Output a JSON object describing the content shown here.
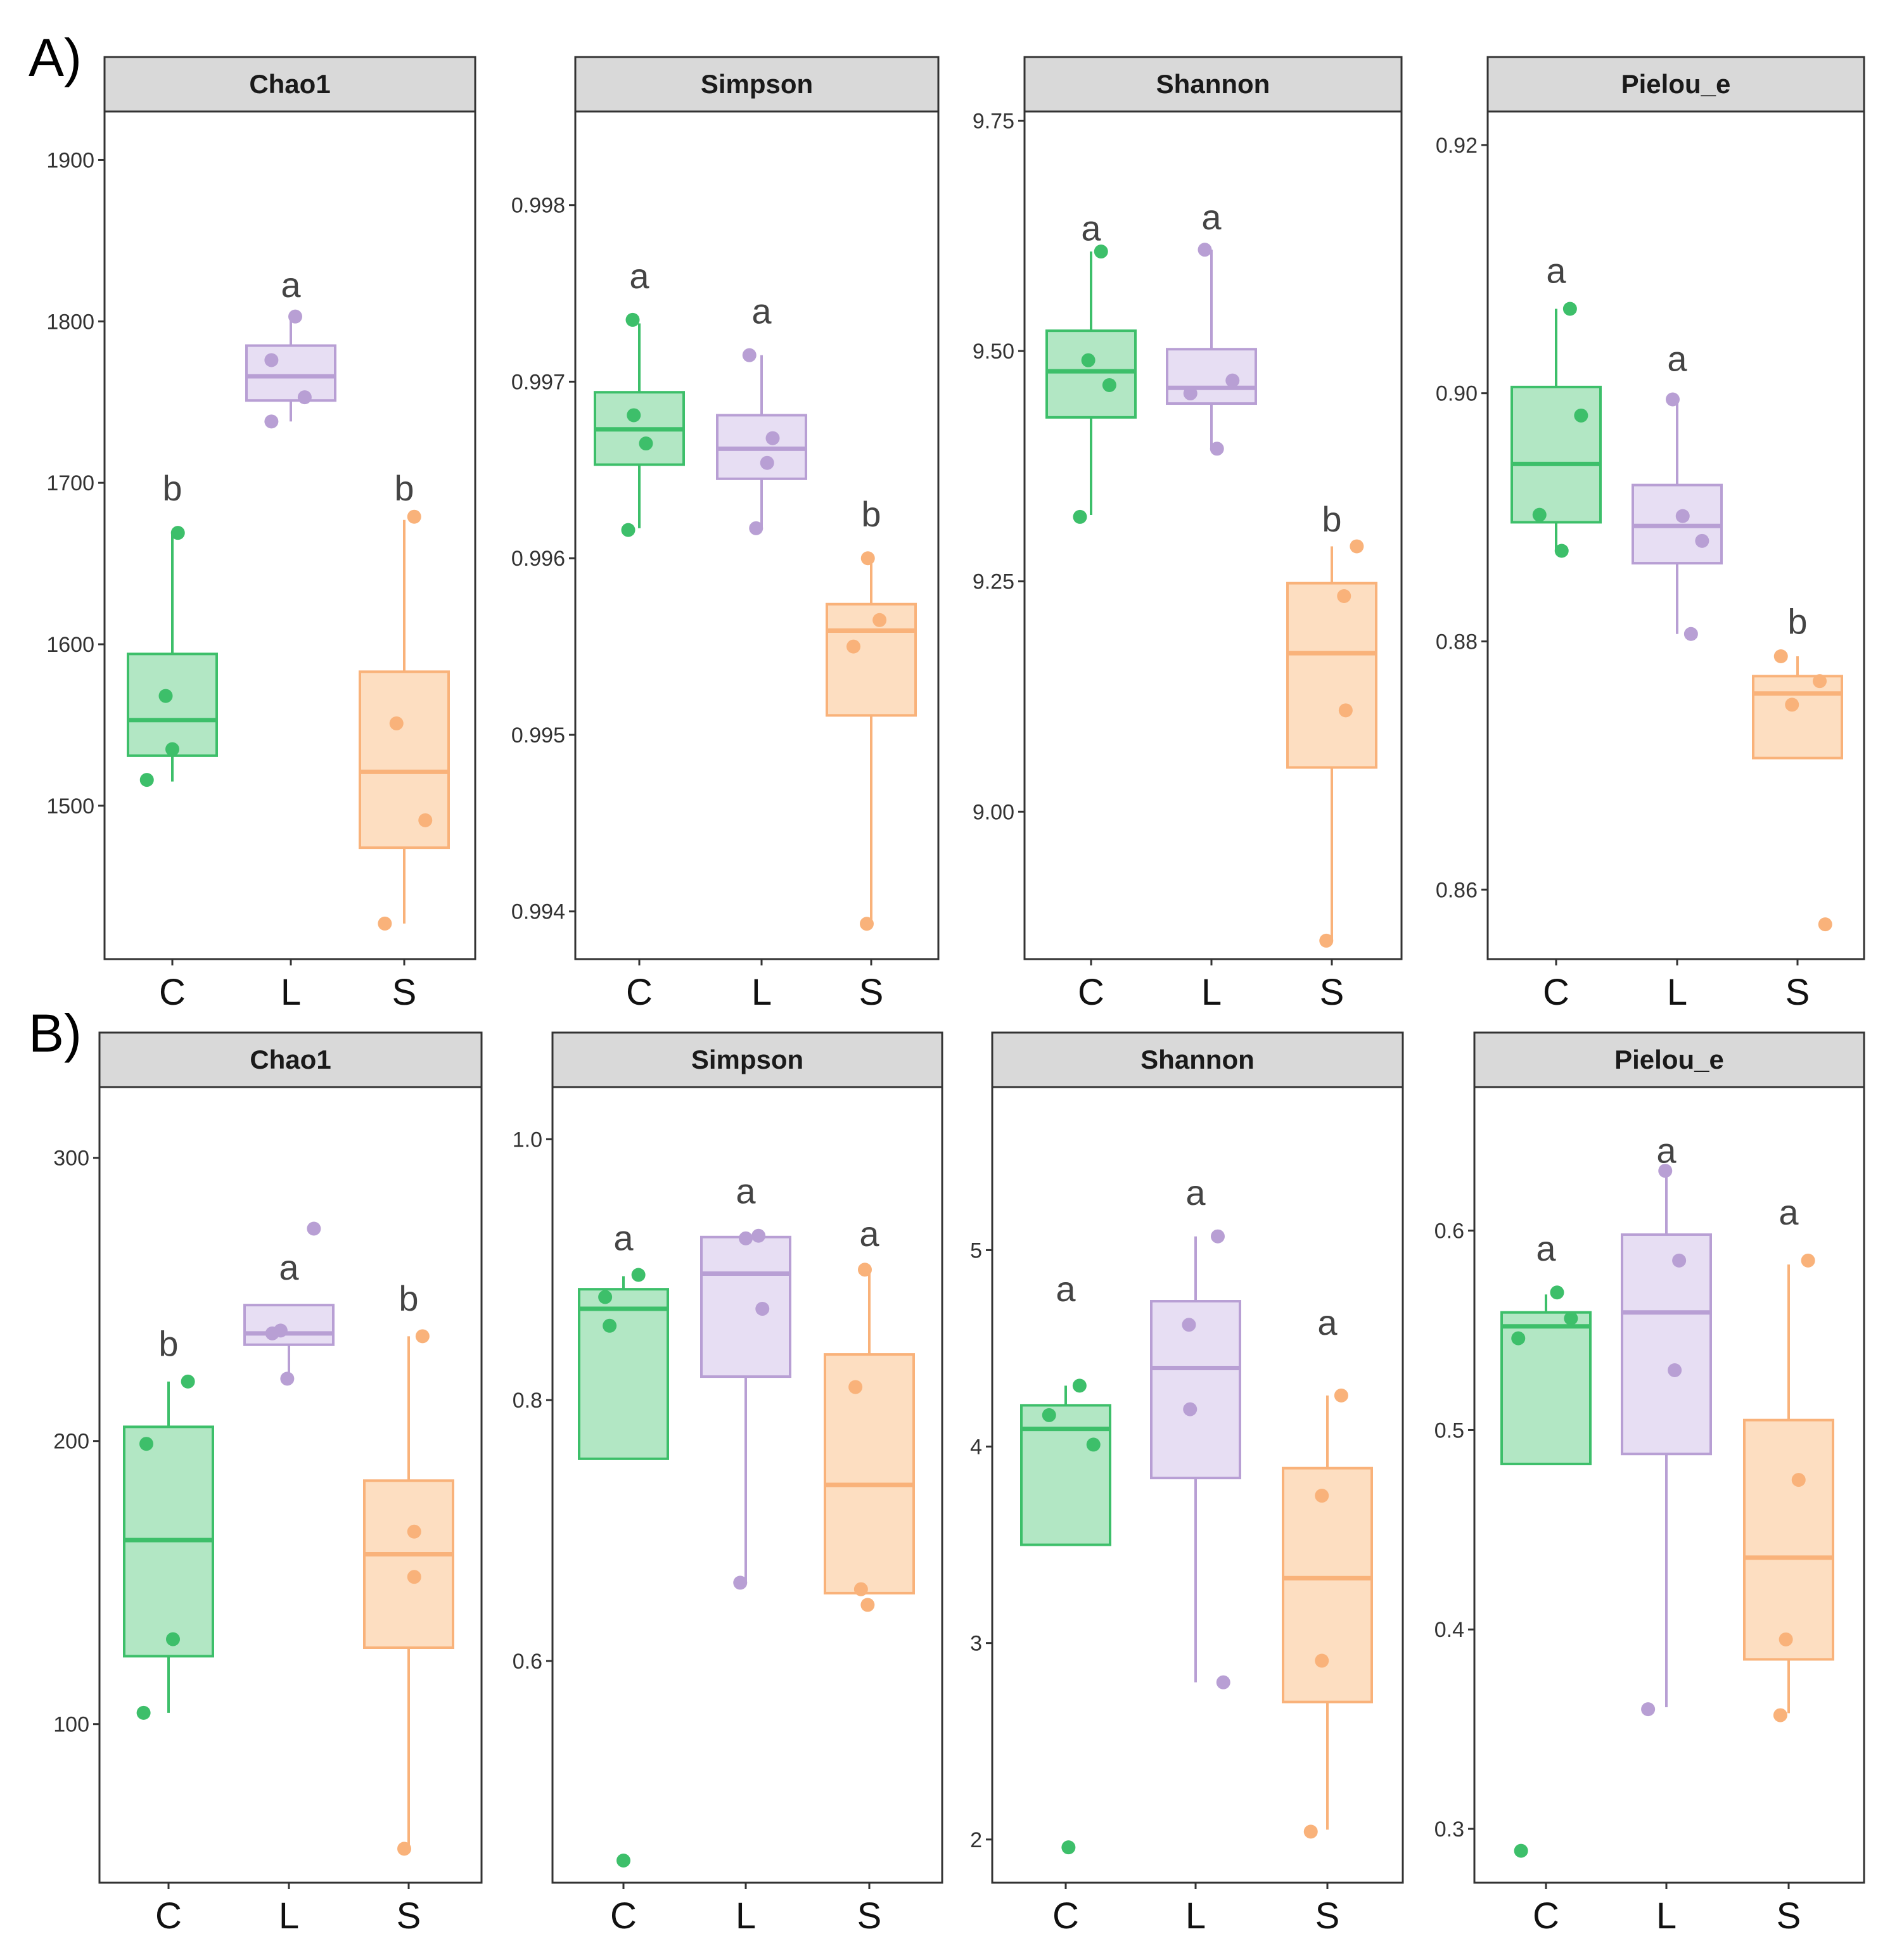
{
  "row_labels": [
    "A)",
    "B)"
  ],
  "colors": {
    "C": "#3dbf6a",
    "L": "#b89fd4",
    "S": "#f9b27a"
  },
  "fills": {
    "C": "#aee6c1",
    "L": "#e6dcf2",
    "S": "#fddcbe"
  },
  "chart_data": [
    {
      "type": "box",
      "row": "A)",
      "title": "Chao1",
      "categories": [
        "C",
        "L",
        "S"
      ],
      "ylim": [
        1405,
        1930
      ],
      "yticks": [
        1500,
        1600,
        1700,
        1800,
        1900
      ],
      "boxes": [
        {
          "cat": "C",
          "q1": 1531,
          "median": 1553,
          "q3": 1594,
          "wlo": 1515,
          "whi": 1669
        },
        {
          "cat": "L",
          "q1": 1751,
          "median": 1766,
          "q3": 1785,
          "wlo": 1738,
          "whi": 1803
        },
        {
          "cat": "S",
          "q1": 1474,
          "median": 1521,
          "q3": 1583,
          "wlo": 1427,
          "whi": 1677
        }
      ],
      "points": [
        {
          "cat": "C",
          "y": 1516,
          "dx": -0.46
        },
        {
          "cat": "C",
          "y": 1568,
          "dx": -0.12
        },
        {
          "cat": "C",
          "y": 1535,
          "dx": 0.0
        },
        {
          "cat": "C",
          "y": 1669,
          "dx": 0.1
        },
        {
          "cat": "L",
          "y": 1738,
          "dx": -0.35
        },
        {
          "cat": "L",
          "y": 1776,
          "dx": -0.35
        },
        {
          "cat": "L",
          "y": 1803,
          "dx": 0.08
        },
        {
          "cat": "L",
          "y": 1753,
          "dx": 0.25
        },
        {
          "cat": "S",
          "y": 1427,
          "dx": -0.35
        },
        {
          "cat": "S",
          "y": 1551,
          "dx": -0.14
        },
        {
          "cat": "S",
          "y": 1491,
          "dx": 0.38
        },
        {
          "cat": "S",
          "y": 1679,
          "dx": 0.18
        }
      ],
      "letters": [
        {
          "cat": "C",
          "text": "b",
          "y": 1689
        },
        {
          "cat": "L",
          "text": "a",
          "y": 1815
        },
        {
          "cat": "S",
          "text": "b",
          "y": 1689
        }
      ]
    },
    {
      "type": "box",
      "row": "A)",
      "title": "Simpson",
      "categories": [
        "C",
        "L",
        "S"
      ],
      "ylim": [
        0.99373,
        0.99853
      ],
      "yticks": [
        0.994,
        0.995,
        0.996,
        0.997,
        0.998
      ],
      "yticklabels": [
        "0.994",
        "0.995",
        "0.996",
        "0.997",
        "0.998"
      ],
      "boxes": [
        {
          "cat": "C",
          "q1": 0.99653,
          "median": 0.99673,
          "q3": 0.99694,
          "wlo": 0.99617,
          "whi": 0.99733
        },
        {
          "cat": "L",
          "q1": 0.99645,
          "median": 0.99662,
          "q3": 0.99681,
          "wlo": 0.99617,
          "whi": 0.99715
        },
        {
          "cat": "S",
          "q1": 0.99511,
          "median": 0.99559,
          "q3": 0.99574,
          "wlo": 0.99393,
          "whi": 0.996
        }
      ],
      "points": [
        {
          "cat": "C",
          "y": 0.99616,
          "dx": -0.2
        },
        {
          "cat": "C",
          "y": 0.99681,
          "dx": -0.1
        },
        {
          "cat": "C",
          "y": 0.99665,
          "dx": 0.12
        },
        {
          "cat": "C",
          "y": 0.99735,
          "dx": -0.12
        },
        {
          "cat": "L",
          "y": 0.99617,
          "dx": -0.1
        },
        {
          "cat": "L",
          "y": 0.99654,
          "dx": 0.1
        },
        {
          "cat": "L",
          "y": 0.99668,
          "dx": 0.2
        },
        {
          "cat": "L",
          "y": 0.99715,
          "dx": -0.22
        },
        {
          "cat": "S",
          "y": 0.99393,
          "dx": -0.08
        },
        {
          "cat": "S",
          "y": 0.9955,
          "dx": -0.32
        },
        {
          "cat": "S",
          "y": 0.99565,
          "dx": 0.15
        },
        {
          "cat": "S",
          "y": 0.996,
          "dx": -0.06
        }
      ],
      "letters": [
        {
          "cat": "C",
          "text": "a",
          "y": 0.99753
        },
        {
          "cat": "L",
          "text": "a",
          "y": 0.99733
        },
        {
          "cat": "S",
          "text": "b",
          "y": 0.99618
        }
      ]
    },
    {
      "type": "box",
      "row": "A)",
      "title": "Shannon",
      "categories": [
        "C",
        "L",
        "S"
      ],
      "ylim": [
        8.84,
        9.76
      ],
      "yticks": [
        9.0,
        9.25,
        9.5,
        9.75
      ],
      "yticklabels": [
        "9.00",
        "9.25",
        "9.50",
        "9.75"
      ],
      "boxes": [
        {
          "cat": "C",
          "q1": 9.428,
          "median": 9.478,
          "q3": 9.522,
          "wlo": 9.322,
          "whi": 9.608
        },
        {
          "cat": "L",
          "q1": 9.443,
          "median": 9.46,
          "q3": 9.502,
          "wlo": 9.393,
          "whi": 9.61
        },
        {
          "cat": "S",
          "q1": 9.048,
          "median": 9.172,
          "q3": 9.248,
          "wlo": 8.86,
          "whi": 9.288
        }
      ],
      "points": [
        {
          "cat": "C",
          "y": 9.32,
          "dx": -0.2
        },
        {
          "cat": "C",
          "y": 9.49,
          "dx": -0.05
        },
        {
          "cat": "C",
          "y": 9.463,
          "dx": 0.33
        },
        {
          "cat": "C",
          "y": 9.608,
          "dx": 0.18
        },
        {
          "cat": "L",
          "y": 9.454,
          "dx": -0.38
        },
        {
          "cat": "L",
          "y": 9.394,
          "dx": 0.1
        },
        {
          "cat": "L",
          "y": 9.468,
          "dx": 0.38
        },
        {
          "cat": "L",
          "y": 9.61,
          "dx": -0.12
        },
        {
          "cat": "S",
          "y": 8.86,
          "dx": -0.1
        },
        {
          "cat": "S",
          "y": 9.11,
          "dx": 0.25
        },
        {
          "cat": "S",
          "y": 9.234,
          "dx": 0.22
        },
        {
          "cat": "S",
          "y": 9.288,
          "dx": 0.45
        }
      ],
      "letters": [
        {
          "cat": "C",
          "text": "a",
          "y": 9.62
        },
        {
          "cat": "L",
          "text": "a",
          "y": 9.632
        },
        {
          "cat": "S",
          "text": "b",
          "y": 9.304
        }
      ]
    },
    {
      "type": "box",
      "row": "A)",
      "title": "Pielou_e",
      "categories": [
        "C",
        "L",
        "S"
      ],
      "ylim": [
        0.8544,
        0.9227
      ],
      "yticks": [
        0.86,
        0.88,
        0.9,
        0.92
      ],
      "yticklabels": [
        "0.86",
        "0.88",
        "0.90",
        "0.92"
      ],
      "boxes": [
        {
          "cat": "C",
          "q1": 0.8896,
          "median": 0.8943,
          "q3": 0.9005,
          "wlo": 0.8873,
          "whi": 0.9068
        },
        {
          "cat": "L",
          "q1": 0.8863,
          "median": 0.8893,
          "q3": 0.8926,
          "wlo": 0.8806,
          "whi": 0.8996
        },
        {
          "cat": "S",
          "q1": 0.8706,
          "median": 0.8758,
          "q3": 0.8772,
          "wlo": 0.8706,
          "whi": 0.8788
        }
      ],
      "points": [
        {
          "cat": "C",
          "y": 0.8902,
          "dx": -0.3
        },
        {
          "cat": "C",
          "y": 0.8873,
          "dx": 0.1
        },
        {
          "cat": "C",
          "y": 0.8982,
          "dx": 0.45
        },
        {
          "cat": "C",
          "y": 0.9068,
          "dx": 0.25
        },
        {
          "cat": "L",
          "y": 0.8806,
          "dx": 0.25
        },
        {
          "cat": "L",
          "y": 0.8881,
          "dx": 0.45
        },
        {
          "cat": "L",
          "y": 0.8901,
          "dx": 0.1
        },
        {
          "cat": "L",
          "y": 0.8995,
          "dx": -0.08
        },
        {
          "cat": "S",
          "y": 0.8572,
          "dx": 0.5
        },
        {
          "cat": "S",
          "y": 0.8749,
          "dx": -0.1
        },
        {
          "cat": "S",
          "y": 0.8768,
          "dx": 0.4
        },
        {
          "cat": "S",
          "y": 0.8788,
          "dx": -0.3
        }
      ],
      "letters": [
        {
          "cat": "C",
          "text": "a",
          "y": 0.9089
        },
        {
          "cat": "L",
          "text": "a",
          "y": 0.9018
        },
        {
          "cat": "S",
          "text": "b",
          "y": 0.8806
        }
      ]
    },
    {
      "type": "box",
      "row": "B)",
      "title": "Chao1",
      "categories": [
        "C",
        "L",
        "S"
      ],
      "ylim": [
        44,
        325
      ],
      "yticks": [
        100,
        200,
        300
      ],
      "boxes": [
        {
          "cat": "C",
          "q1": 124,
          "median": 165,
          "q3": 205,
          "wlo": 104,
          "whi": 221
        },
        {
          "cat": "L",
          "q1": 234,
          "median": 238,
          "q3": 248,
          "wlo": 222,
          "whi": 248
        },
        {
          "cat": "S",
          "q1": 127,
          "median": 160,
          "q3": 186,
          "wlo": 56,
          "whi": 237
        }
      ],
      "points": [
        {
          "cat": "C",
          "y": 104,
          "dx": -0.45
        },
        {
          "cat": "C",
          "y": 130,
          "dx": 0.08
        },
        {
          "cat": "C",
          "y": 199,
          "dx": -0.4
        },
        {
          "cat": "C",
          "y": 221,
          "dx": 0.35
        },
        {
          "cat": "L",
          "y": 222,
          "dx": -0.03
        },
        {
          "cat": "L",
          "y": 238,
          "dx": -0.3
        },
        {
          "cat": "L",
          "y": 239,
          "dx": -0.15
        },
        {
          "cat": "L",
          "y": 275,
          "dx": 0.45
        },
        {
          "cat": "S",
          "y": 56,
          "dx": -0.08
        },
        {
          "cat": "S",
          "y": 152,
          "dx": 0.1
        },
        {
          "cat": "S",
          "y": 168,
          "dx": 0.1
        },
        {
          "cat": "S",
          "y": 237,
          "dx": 0.25
        }
      ],
      "letters": [
        {
          "cat": "C",
          "text": "b",
          "y": 230
        },
        {
          "cat": "L",
          "text": "a",
          "y": 257
        },
        {
          "cat": "S",
          "text": "b",
          "y": 246
        }
      ]
    },
    {
      "type": "box",
      "row": "B)",
      "title": "Simpson",
      "categories": [
        "C",
        "L",
        "S"
      ],
      "ylim": [
        0.43,
        1.04
      ],
      "yticks": [
        0.6,
        0.8,
        1.0
      ],
      "yticklabels": [
        "0.6",
        "0.8",
        "1.0"
      ],
      "boxes": [
        {
          "cat": "C",
          "q1": 0.755,
          "median": 0.87,
          "q3": 0.885,
          "wlo": 0.755,
          "whi": 0.895
        },
        {
          "cat": "L",
          "q1": 0.818,
          "median": 0.897,
          "q3": 0.925,
          "wlo": 0.66,
          "whi": 0.925
        },
        {
          "cat": "S",
          "q1": 0.652,
          "median": 0.735,
          "q3": 0.835,
          "wlo": 0.652,
          "whi": 0.9
        }
      ],
      "points": [
        {
          "cat": "C",
          "y": 0.447,
          "dx": 0.0
        },
        {
          "cat": "C",
          "y": 0.857,
          "dx": -0.25
        },
        {
          "cat": "C",
          "y": 0.879,
          "dx": -0.33
        },
        {
          "cat": "C",
          "y": 0.896,
          "dx": 0.27
        },
        {
          "cat": "L",
          "y": 0.66,
          "dx": -0.1
        },
        {
          "cat": "L",
          "y": 0.87,
          "dx": 0.3
        },
        {
          "cat": "L",
          "y": 0.924,
          "dx": 0.0
        },
        {
          "cat": "L",
          "y": 0.926,
          "dx": 0.23
        },
        {
          "cat": "S",
          "y": 0.643,
          "dx": -0.03
        },
        {
          "cat": "S",
          "y": 0.655,
          "dx": -0.15
        },
        {
          "cat": "S",
          "y": 0.81,
          "dx": -0.25
        },
        {
          "cat": "S",
          "y": 0.9,
          "dx": -0.08
        }
      ],
      "letters": [
        {
          "cat": "C",
          "text": "a",
          "y": 0.915
        },
        {
          "cat": "L",
          "text": "a",
          "y": 0.951
        },
        {
          "cat": "S",
          "text": "a",
          "y": 0.918
        }
      ]
    },
    {
      "type": "box",
      "row": "B)",
      "title": "Shannon",
      "categories": [
        "C",
        "L",
        "S"
      ],
      "ylim": [
        1.78,
        5.83
      ],
      "yticks": [
        2,
        3,
        4,
        5
      ],
      "boxes": [
        {
          "cat": "C",
          "q1": 3.5,
          "median": 4.09,
          "q3": 4.21,
          "wlo": 3.5,
          "whi": 4.31
        },
        {
          "cat": "L",
          "q1": 3.84,
          "median": 4.4,
          "q3": 4.74,
          "wlo": 2.8,
          "whi": 5.07
        },
        {
          "cat": "S",
          "q1": 2.7,
          "median": 3.33,
          "q3": 3.89,
          "wlo": 2.05,
          "whi": 4.26
        }
      ],
      "points": [
        {
          "cat": "C",
          "y": 1.96,
          "dx": 0.05
        },
        {
          "cat": "C",
          "y": 4.16,
          "dx": -0.3
        },
        {
          "cat": "C",
          "y": 4.31,
          "dx": 0.25
        },
        {
          "cat": "C",
          "y": 4.01,
          "dx": 0.5
        },
        {
          "cat": "L",
          "y": 2.8,
          "dx": 0.5
        },
        {
          "cat": "L",
          "y": 4.19,
          "dx": -0.1
        },
        {
          "cat": "L",
          "y": 4.62,
          "dx": -0.12
        },
        {
          "cat": "L",
          "y": 5.07,
          "dx": 0.4
        },
        {
          "cat": "S",
          "y": 2.04,
          "dx": -0.3
        },
        {
          "cat": "S",
          "y": 2.91,
          "dx": -0.1
        },
        {
          "cat": "S",
          "y": 3.75,
          "dx": -0.1
        },
        {
          "cat": "S",
          "y": 4.26,
          "dx": 0.25
        }
      ],
      "letters": [
        {
          "cat": "C",
          "text": "a",
          "y": 4.74
        },
        {
          "cat": "L",
          "text": "a",
          "y": 5.23
        },
        {
          "cat": "S",
          "text": "a",
          "y": 4.57
        }
      ]
    },
    {
      "type": "box",
      "row": "B)",
      "title": "Pielou_e",
      "categories": [
        "C",
        "L",
        "S"
      ],
      "ylim": [
        0.273,
        0.672
      ],
      "yticks": [
        0.3,
        0.4,
        0.5,
        0.6
      ],
      "yticklabels": [
        "0.3",
        "0.4",
        "0.5",
        "0.6"
      ],
      "boxes": [
        {
          "cat": "C",
          "q1": 0.483,
          "median": 0.552,
          "q3": 0.559,
          "wlo": 0.483,
          "whi": 0.568
        },
        {
          "cat": "L",
          "q1": 0.488,
          "median": 0.559,
          "q3": 0.598,
          "wlo": 0.361,
          "whi": 0.63
        },
        {
          "cat": "S",
          "q1": 0.385,
          "median": 0.436,
          "q3": 0.505,
          "wlo": 0.358,
          "whi": 0.583
        }
      ],
      "points": [
        {
          "cat": "C",
          "y": 0.289,
          "dx": -0.45
        },
        {
          "cat": "C",
          "y": 0.546,
          "dx": -0.5
        },
        {
          "cat": "C",
          "y": 0.569,
          "dx": 0.2
        },
        {
          "cat": "C",
          "y": 0.556,
          "dx": 0.45
        },
        {
          "cat": "L",
          "y": 0.36,
          "dx": -0.33
        },
        {
          "cat": "L",
          "y": 0.53,
          "dx": 0.15
        },
        {
          "cat": "L",
          "y": 0.585,
          "dx": 0.23
        },
        {
          "cat": "L",
          "y": 0.63,
          "dx": -0.02
        },
        {
          "cat": "S",
          "y": 0.357,
          "dx": -0.15
        },
        {
          "cat": "S",
          "y": 0.395,
          "dx": -0.05
        },
        {
          "cat": "S",
          "y": 0.475,
          "dx": 0.18
        },
        {
          "cat": "S",
          "y": 0.585,
          "dx": 0.35
        }
      ],
      "letters": [
        {
          "cat": "C",
          "text": "a",
          "y": 0.585
        },
        {
          "cat": "L",
          "text": "a",
          "y": 0.634
        },
        {
          "cat": "S",
          "text": "a",
          "y": 0.603
        }
      ]
    }
  ]
}
